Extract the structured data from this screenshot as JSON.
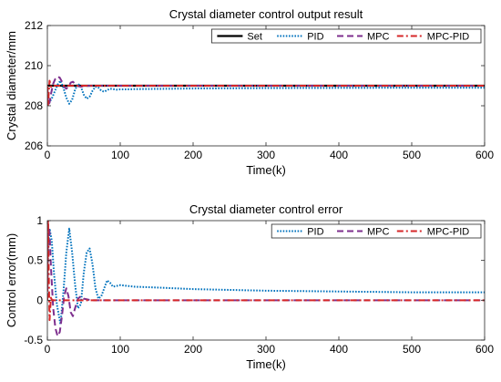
{
  "chart_data": [
    {
      "type": "line",
      "title": "Crystal diameter control output result",
      "xlabel": "Time(k)",
      "ylabel": "Crystal diameter/mm",
      "xlim": [
        0,
        600
      ],
      "ylim": [
        206,
        212
      ],
      "xticks": [
        "0",
        "100",
        "200",
        "300",
        "400",
        "500",
        "600"
      ],
      "yticks": [
        "206",
        "208",
        "210",
        "212"
      ],
      "grid": false,
      "legend_position": "top",
      "legend_orientation": "horizontal",
      "series": [
        {
          "name": "Set",
          "color": "#000000",
          "style": "solid",
          "x": [
            0,
            600
          ],
          "y": [
            209,
            209
          ]
        },
        {
          "name": "PID",
          "color": "#0072BD",
          "style": "dotted",
          "x": [
            0,
            1,
            3,
            6,
            10,
            14,
            18,
            22,
            26,
            30,
            34,
            38,
            42,
            46,
            50,
            54,
            58,
            62,
            66,
            70,
            74,
            78,
            82,
            86,
            90,
            95,
            100,
            110,
            120,
            150,
            200,
            300,
            400,
            500,
            600
          ],
          "y": [
            209.0,
            208.4,
            208.2,
            208.35,
            208.7,
            209.05,
            209.25,
            208.9,
            208.4,
            208.1,
            208.3,
            208.8,
            209.1,
            208.95,
            208.55,
            208.35,
            208.45,
            208.75,
            208.95,
            208.9,
            208.75,
            208.7,
            208.78,
            208.85,
            208.83,
            208.8,
            208.82,
            208.82,
            208.83,
            208.84,
            208.86,
            208.88,
            208.89,
            208.9,
            208.9
          ]
        },
        {
          "name": "MPC",
          "color": "#7E2F8E",
          "style": "dashed",
          "x": [
            0,
            1,
            3,
            5,
            8,
            11,
            14,
            17,
            20,
            23,
            26,
            29,
            32,
            35,
            38,
            42,
            46,
            50,
            60,
            100,
            200,
            300,
            400,
            500,
            600
          ],
          "y": [
            209.0,
            208.05,
            208.15,
            208.6,
            209.1,
            209.35,
            209.45,
            209.4,
            209.2,
            208.95,
            208.85,
            208.95,
            209.15,
            209.2,
            209.1,
            208.98,
            208.95,
            208.98,
            209.0,
            209.0,
            209.0,
            209.0,
            209.0,
            209.0,
            209.0
          ]
        },
        {
          "name": "MPC-PID",
          "color": "#D62728",
          "style": "dashdot",
          "x": [
            0,
            1,
            2,
            3,
            4,
            5,
            6,
            8,
            10,
            20,
            100,
            200,
            300,
            400,
            500,
            600
          ],
          "y": [
            209.0,
            208.0,
            208.7,
            209.25,
            209.1,
            208.95,
            209.0,
            209.0,
            209.0,
            209.0,
            209.0,
            209.0,
            209.0,
            209.0,
            209.0,
            209.0
          ]
        }
      ]
    },
    {
      "type": "line",
      "title": "Crystal diameter control error",
      "xlabel": "Time(k)",
      "ylabel": "Control error(mm)",
      "xlim": [
        0,
        600
      ],
      "ylim": [
        -0.5,
        1
      ],
      "xticks": [
        "0",
        "100",
        "200",
        "300",
        "400",
        "500",
        "600"
      ],
      "yticks": [
        "-0.5",
        "0",
        "0.5",
        "1"
      ],
      "grid": false,
      "legend_position": "top-right",
      "legend_orientation": "horizontal",
      "series": [
        {
          "name": "PID",
          "color": "#0072BD",
          "style": "dotted",
          "x": [
            0,
            1,
            3,
            6,
            9,
            13,
            18,
            22,
            26,
            30,
            34,
            38,
            42,
            46,
            50,
            54,
            58,
            62,
            66,
            70,
            74,
            78,
            82,
            86,
            90,
            95,
            100,
            110,
            120,
            150,
            200,
            300,
            400,
            500,
            600
          ],
          "y": [
            0.0,
            0.6,
            0.9,
            0.75,
            0.35,
            -0.05,
            -0.3,
            0.1,
            0.6,
            0.9,
            0.6,
            0.2,
            -0.1,
            -0.05,
            0.35,
            0.6,
            0.65,
            0.45,
            0.15,
            0.02,
            0.05,
            0.15,
            0.25,
            0.22,
            0.17,
            0.18,
            0.19,
            0.18,
            0.17,
            0.16,
            0.14,
            0.12,
            0.11,
            0.1,
            0.1
          ]
        },
        {
          "name": "MPC",
          "color": "#7E2F8E",
          "style": "dashed",
          "x": [
            0,
            1,
            3,
            5,
            8,
            11,
            14,
            17,
            20,
            23,
            26,
            29,
            32,
            35,
            38,
            42,
            46,
            50,
            60,
            100,
            200,
            300,
            400,
            500,
            600
          ],
          "y": [
            0.0,
            0.95,
            0.85,
            0.4,
            -0.1,
            -0.35,
            -0.45,
            -0.4,
            -0.2,
            0.05,
            0.15,
            0.05,
            -0.15,
            -0.2,
            -0.1,
            0.02,
            0.05,
            0.02,
            0.0,
            0.0,
            0.0,
            0.0,
            0.0,
            0.0,
            0.0
          ]
        },
        {
          "name": "MPC-PID",
          "color": "#D62728",
          "style": "dashdot",
          "x": [
            0,
            1,
            2,
            3,
            4,
            5,
            6,
            8,
            10,
            20,
            100,
            200,
            300,
            400,
            500,
            600
          ],
          "y": [
            0.0,
            1.0,
            0.3,
            -0.25,
            -0.1,
            0.05,
            0.0,
            0.0,
            0.0,
            0.0,
            0.0,
            0.0,
            0.0,
            0.0,
            0.0,
            0.0
          ]
        }
      ]
    }
  ]
}
